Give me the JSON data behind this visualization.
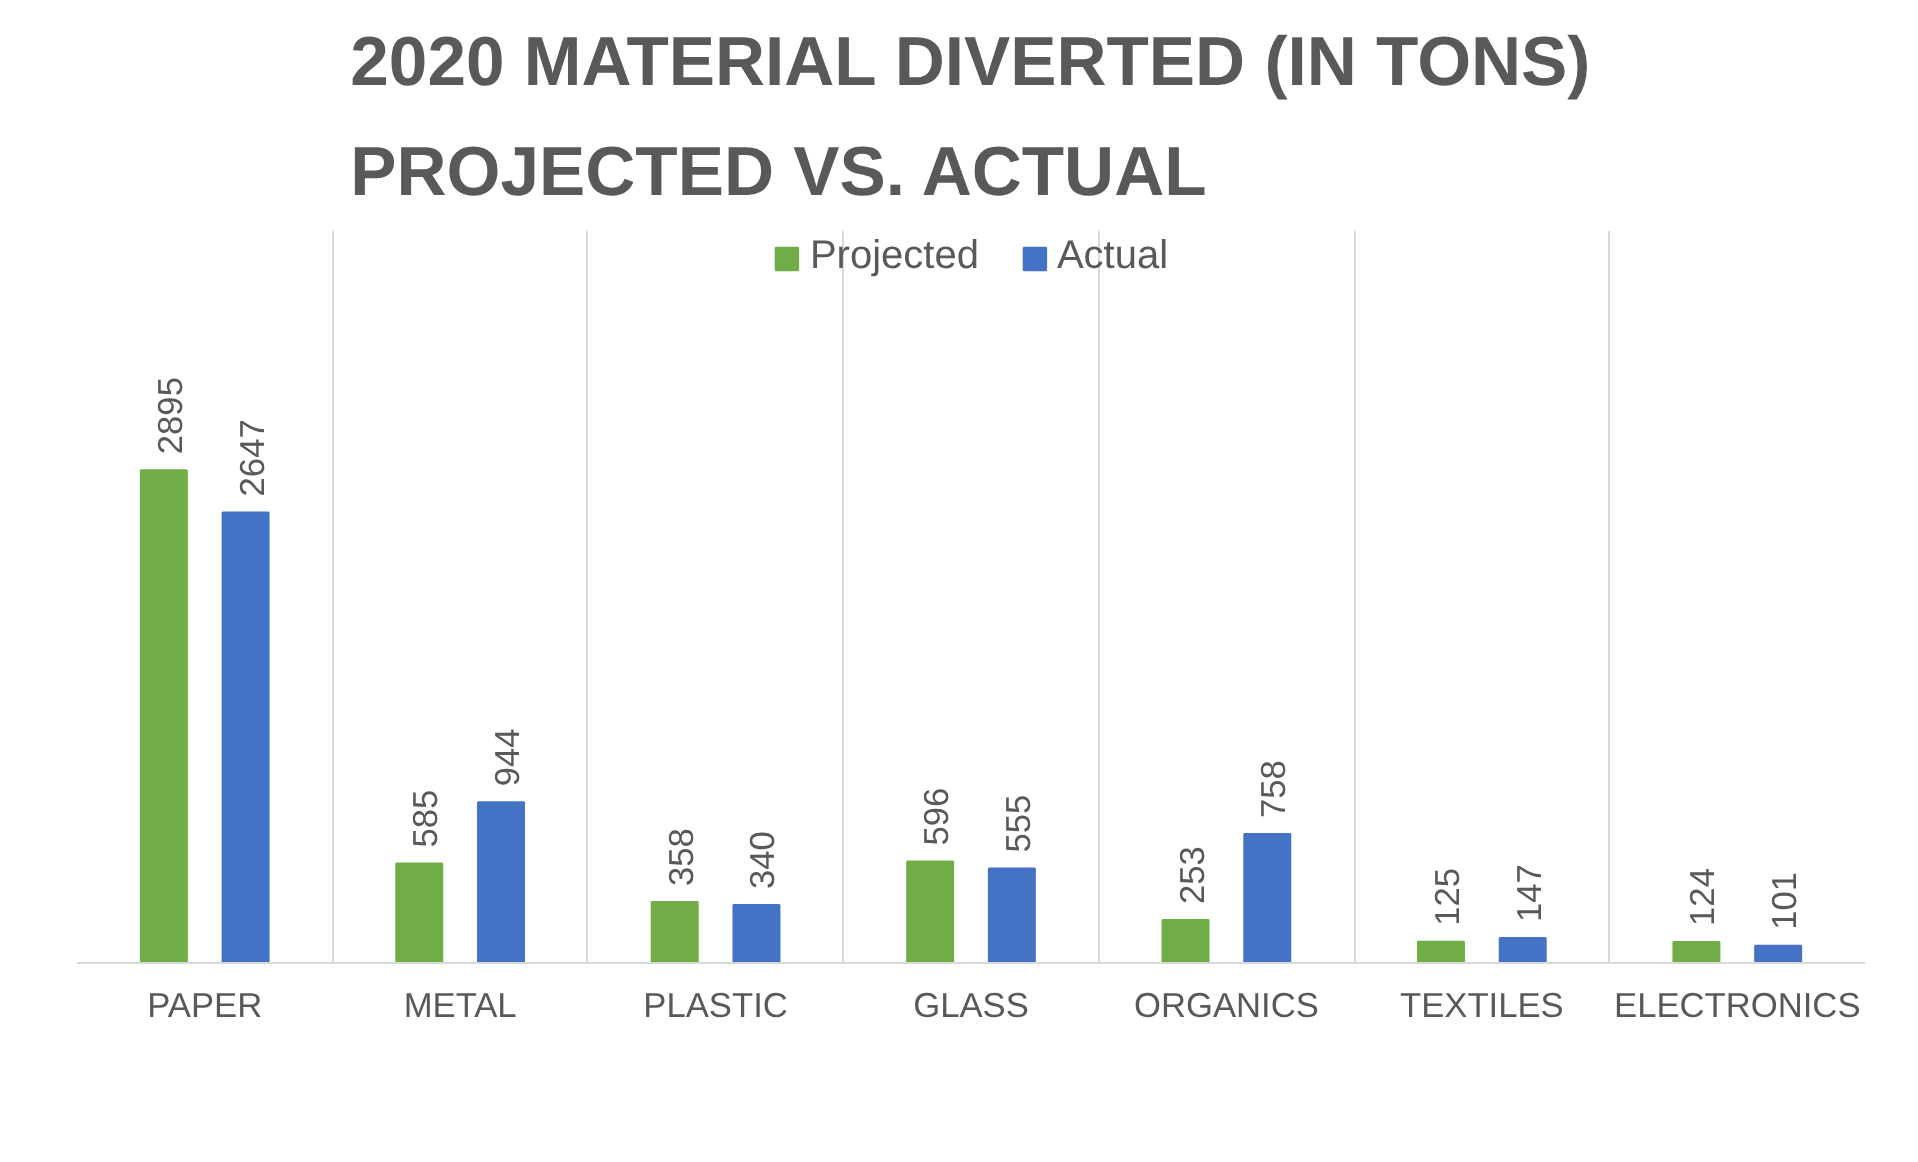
{
  "chart_data": {
    "type": "bar",
    "title": "2020 MATERIAL DIVERTED (IN TONS)\nPROJECTED VS. ACTUAL",
    "categories": [
      "PAPER",
      "METAL",
      "PLASTIC",
      "GLASS",
      "ORGANICS",
      "TEXTILES",
      "ELECTRONICS"
    ],
    "series": [
      {
        "name": "Projected",
        "color": "#70ad47",
        "values": [
          2895,
          585,
          358,
          596,
          253,
          125,
          124
        ]
      },
      {
        "name": "Actual",
        "color": "#4472c4",
        "values": [
          2647,
          944,
          340,
          555,
          758,
          147,
          101
        ]
      }
    ],
    "ylim": [
      0,
      4300
    ],
    "data_labels": true,
    "grid": "x",
    "legend": "top",
    "tick_labels": "x"
  }
}
